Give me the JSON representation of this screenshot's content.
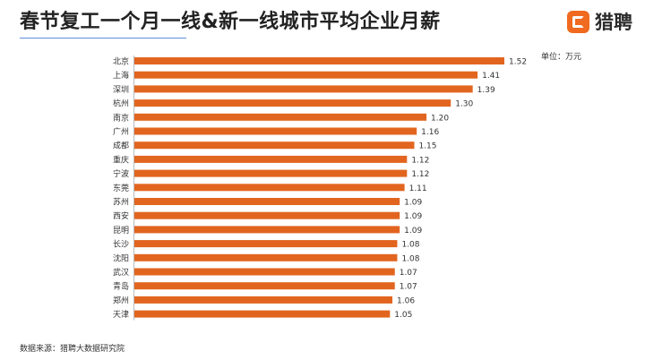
{
  "title": "春节复工一个月一线&新一线城市平均企业月薪",
  "logo": {
    "text": "猎聘",
    "icon": "liepin-logo-icon"
  },
  "unit": "单位：万元",
  "source": "数据来源：猎聘大数据研究院",
  "colors": {
    "bar": "#e2651f",
    "accent": "#f06a1f",
    "title_underline": "#5b8fd8"
  },
  "chart_data": {
    "type": "bar",
    "orientation": "horizontal",
    "categories": [
      "北京",
      "上海",
      "深圳",
      "杭州",
      "南京",
      "广州",
      "成都",
      "重庆",
      "宁波",
      "东莞",
      "苏州",
      "西安",
      "昆明",
      "长沙",
      "沈阳",
      "武汉",
      "青岛",
      "郑州",
      "天津"
    ],
    "values": [
      1.52,
      1.41,
      1.39,
      1.3,
      1.2,
      1.16,
      1.15,
      1.12,
      1.12,
      1.11,
      1.09,
      1.09,
      1.09,
      1.08,
      1.08,
      1.07,
      1.07,
      1.06,
      1.05
    ],
    "value_labels": [
      "1.52",
      "1.41",
      "1.39",
      "1.30",
      "1.20",
      "1.16",
      "1.15",
      "1.12",
      "1.12",
      "1.11",
      "1.09",
      "1.09",
      "1.09",
      "1.08",
      "1.08",
      "1.07",
      "1.07",
      "1.06",
      "1.05"
    ],
    "xlim": [
      0,
      1.52
    ],
    "grid": false,
    "legend": "none"
  }
}
